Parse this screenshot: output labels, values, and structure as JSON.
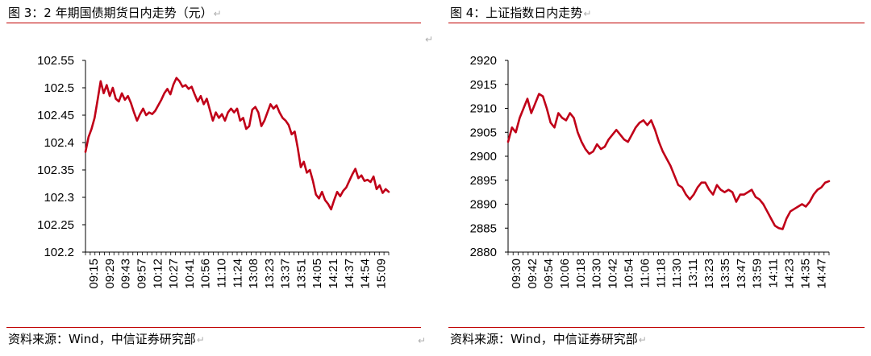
{
  "return_mark": "↵",
  "figures": [
    {
      "title": "图 3：2 年期国债期货日内走势（元）",
      "source": "资料来源：Wind，中信证券研究部"
    },
    {
      "title": "图 4：上证指数日内走势",
      "source": "资料来源：Wind，中信证券研究部"
    }
  ],
  "chart_data": [
    {
      "type": "line",
      "title": "",
      "xlabel": "",
      "ylabel": "",
      "ylim": [
        102.2,
        102.55
      ],
      "yticks": [
        "102.2",
        "102.25",
        "102.3",
        "102.35",
        "102.4",
        "102.45",
        "102.5",
        "102.55"
      ],
      "xticks": [
        "09:15",
        "09:29",
        "09:43",
        "09:57",
        "10:12",
        "10:27",
        "10:41",
        "10:56",
        "11:10",
        "11:24",
        "13:08",
        "13:23",
        "13:37",
        "13:51",
        "14:05",
        "14:21",
        "14:37",
        "14:54",
        "15:09"
      ],
      "grid": false,
      "legend": "none",
      "color": "#c00018",
      "series": [
        {
          "values": [
            102.383,
            102.41,
            102.425,
            102.445,
            102.478,
            102.512,
            102.49,
            102.505,
            102.485,
            102.5,
            102.48,
            102.475,
            102.49,
            102.478,
            102.485,
            102.472,
            102.455,
            102.44,
            102.452,
            102.462,
            102.45,
            102.455,
            102.452,
            102.458,
            102.468,
            102.478,
            102.49,
            102.498,
            102.488,
            102.506,
            102.518,
            102.512,
            102.502,
            102.505,
            102.498,
            102.502,
            102.488,
            102.475,
            102.485,
            102.47,
            102.48,
            102.46,
            102.44,
            102.455,
            102.445,
            102.452,
            102.44,
            102.455,
            102.462,
            102.455,
            102.462,
            102.44,
            102.445,
            102.425,
            102.43,
            102.46,
            102.465,
            102.455,
            102.43,
            102.44,
            102.455,
            102.47,
            102.462,
            102.468,
            102.455,
            102.445,
            102.44,
            102.432,
            102.415,
            102.42,
            102.39,
            102.355,
            102.365,
            102.345,
            102.35,
            102.33,
            102.305,
            102.298,
            102.31,
            102.295,
            102.288,
            102.278,
            102.295,
            102.31,
            102.302,
            102.312,
            102.318,
            102.33,
            102.342,
            102.352,
            102.335,
            102.34,
            102.33,
            102.332,
            102.328,
            102.338,
            102.315,
            102.322,
            102.308,
            102.315,
            102.31
          ]
        }
      ]
    },
    {
      "type": "line",
      "title": "",
      "xlabel": "",
      "ylabel": "",
      "ylim": [
        2880,
        2920
      ],
      "yticks": [
        "2880",
        "2885",
        "2890",
        "2895",
        "2900",
        "2905",
        "2910",
        "2915",
        "2920"
      ],
      "xticks": [
        "09:30",
        "09:42",
        "09:54",
        "10:06",
        "10:18",
        "10:30",
        "10:42",
        "10:54",
        "11:06",
        "11:18",
        "11:30",
        "13:11",
        "13:23",
        "13:35",
        "13:47",
        "13:59",
        "14:11",
        "14:23",
        "14:35",
        "14:47"
      ],
      "grid": false,
      "legend": "none",
      "color": "#c00018",
      "series": [
        {
          "values": [
            2903,
            2906,
            2905,
            2908,
            2910,
            2912,
            2909,
            2911,
            2913,
            2912.5,
            2910,
            2907,
            2906,
            2909,
            2908,
            2907.5,
            2909,
            2908,
            2905,
            2903,
            2901.5,
            2900.5,
            2901,
            2902.5,
            2901.5,
            2902,
            2903.5,
            2904.5,
            2905.5,
            2904.5,
            2903.5,
            2903,
            2904.5,
            2906,
            2907,
            2907.5,
            2906.5,
            2907.5,
            2905.5,
            2903,
            2901,
            2899.5,
            2898,
            2896,
            2894,
            2893.5,
            2892,
            2891,
            2892,
            2893.5,
            2894.5,
            2894.5,
            2893,
            2892,
            2894,
            2893,
            2892.5,
            2893,
            2892.5,
            2890.5,
            2892,
            2892,
            2892.5,
            2893,
            2891.5,
            2891,
            2890,
            2888.5,
            2887,
            2885.5,
            2885,
            2884.8,
            2887,
            2888.5,
            2889,
            2889.5,
            2890,
            2889.5,
            2890.5,
            2892,
            2893,
            2893.5,
            2894.5,
            2894.8
          ]
        }
      ]
    }
  ]
}
